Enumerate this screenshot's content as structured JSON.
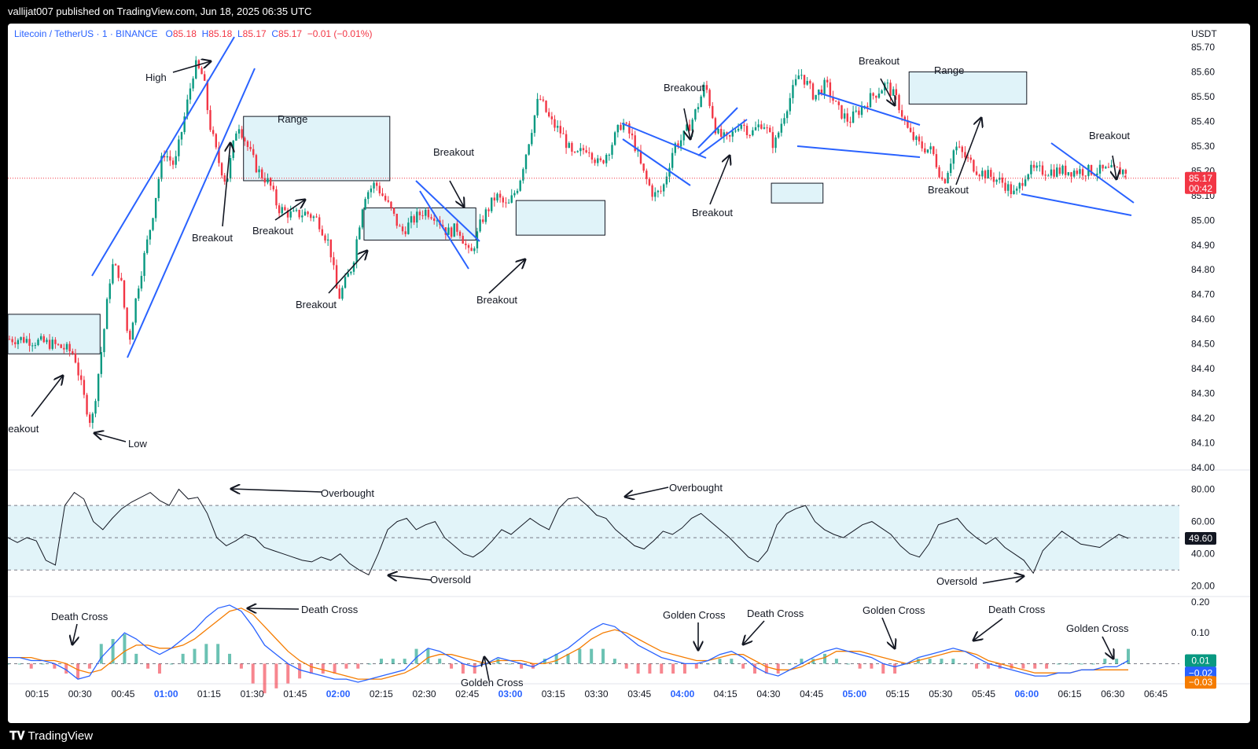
{
  "header": {
    "published": "vallijat007 published on TradingView.com, Jun 18, 2025 06:35 UTC"
  },
  "footer": {
    "brand": "TradingView"
  },
  "legend": {
    "symbol": "Litecoin / TetherUS · 1 · BINANCE",
    "o_label": "O",
    "o": "85.18",
    "h_label": "H",
    "h": "85.18",
    "l_label": "L",
    "l": "85.17",
    "c_label": "C",
    "c": "85.17",
    "change": "−0.01 (−0.01%)"
  },
  "colors": {
    "up": "#089981",
    "down": "#f23645",
    "line": "#2962ff",
    "box": "#d8f0f7",
    "orange": "#f57c00"
  },
  "chart_data": [
    {
      "type": "candlestick",
      "currency": "USDT",
      "y_ticks": [
        "85.70",
        "85.60",
        "85.50",
        "85.40",
        "85.30",
        "85.20",
        "85.10",
        "85.00",
        "84.90",
        "84.80",
        "84.70",
        "84.60",
        "84.50",
        "84.40",
        "84.30",
        "84.20",
        "84.10",
        "84.00"
      ],
      "ylim": [
        84.0,
        85.7
      ],
      "x_ticks": [
        "00:15",
        "00:30",
        "00:45",
        "01:00",
        "01:15",
        "01:30",
        "01:45",
        "02:00",
        "02:15",
        "02:30",
        "02:45",
        "03:00",
        "03:15",
        "03:30",
        "03:45",
        "04:00",
        "04:15",
        "04:30",
        "04:45",
        "05:00",
        "05:15",
        "05:30",
        "05:45",
        "06:00",
        "06:15",
        "06:30",
        "06:45"
      ],
      "bold_ticks": [
        "01:00",
        "02:00",
        "03:00",
        "04:00",
        "05:00",
        "06:00"
      ],
      "last_price": "85.17",
      "countdown": "00:42",
      "price_path": [
        [
          "00:10",
          84.52
        ],
        [
          "00:20",
          84.5
        ],
        [
          "00:25",
          84.48
        ],
        [
          "00:28",
          84.46
        ],
        [
          "00:31",
          84.3
        ],
        [
          "00:34",
          84.17
        ],
        [
          "00:38",
          84.52
        ],
        [
          "00:41",
          84.82
        ],
        [
          "00:44",
          84.78
        ],
        [
          "00:47",
          84.5
        ],
        [
          "00:50",
          84.72
        ],
        [
          "00:55",
          85.0
        ],
        [
          "00:59",
          85.28
        ],
        [
          "01:03",
          85.22
        ],
        [
          "01:07",
          85.45
        ],
        [
          "01:10",
          85.63
        ],
        [
          "01:13",
          85.58
        ],
        [
          "01:15",
          85.4
        ],
        [
          "01:18",
          85.25
        ],
        [
          "01:21",
          85.15
        ],
        [
          "01:25",
          85.4
        ],
        [
          "01:29",
          85.28
        ],
        [
          "01:32",
          85.2
        ],
        [
          "01:36",
          85.15
        ],
        [
          "01:39",
          85.05
        ],
        [
          "01:44",
          85.02
        ],
        [
          "01:49",
          85.03
        ],
        [
          "01:53",
          85.0
        ],
        [
          "01:57",
          84.9
        ],
        [
          "02:00",
          84.68
        ],
        [
          "02:05",
          84.82
        ],
        [
          "02:09",
          85.1
        ],
        [
          "02:13",
          85.15
        ],
        [
          "02:18",
          85.05
        ],
        [
          "02:22",
          84.95
        ],
        [
          "02:26",
          85.0
        ],
        [
          "02:30",
          85.04
        ],
        [
          "02:34",
          85.02
        ],
        [
          "02:38",
          84.95
        ],
        [
          "02:42",
          84.97
        ],
        [
          "02:46",
          84.85
        ],
        [
          "02:50",
          85.0
        ],
        [
          "02:55",
          85.1
        ],
        [
          "02:59",
          85.05
        ],
        [
          "03:03",
          85.15
        ],
        [
          "03:06",
          85.3
        ],
        [
          "03:10",
          85.5
        ],
        [
          "03:14",
          85.4
        ],
        [
          "03:18",
          85.35
        ],
        [
          "03:22",
          85.25
        ],
        [
          "03:27",
          85.3
        ],
        [
          "03:31",
          85.22
        ],
        [
          "03:35",
          85.3
        ],
        [
          "03:39",
          85.4
        ],
        [
          "03:43",
          85.32
        ],
        [
          "03:46",
          85.2
        ],
        [
          "03:50",
          85.1
        ],
        [
          "03:53",
          85.12
        ],
        [
          "03:57",
          85.3
        ],
        [
          "04:00",
          85.33
        ],
        [
          "04:04",
          85.42
        ],
        [
          "04:08",
          85.55
        ],
        [
          "04:12",
          85.35
        ],
        [
          "04:16",
          85.32
        ],
        [
          "04:20",
          85.4
        ],
        [
          "04:24",
          85.35
        ],
        [
          "04:28",
          85.4
        ],
        [
          "04:32",
          85.3
        ],
        [
          "04:36",
          85.45
        ],
        [
          "04:41",
          85.6
        ],
        [
          "04:46",
          85.5
        ],
        [
          "04:50",
          85.55
        ],
        [
          "04:54",
          85.45
        ],
        [
          "04:58",
          85.4
        ],
        [
          "05:02",
          85.45
        ],
        [
          "05:06",
          85.5
        ],
        [
          "05:11",
          85.55
        ],
        [
          "05:15",
          85.48
        ],
        [
          "05:19",
          85.35
        ],
        [
          "05:23",
          85.3
        ],
        [
          "05:27",
          85.28
        ],
        [
          "05:31",
          85.15
        ],
        [
          "05:35",
          85.3
        ],
        [
          "05:39",
          85.25
        ],
        [
          "05:43",
          85.2
        ],
        [
          "05:47",
          85.18
        ],
        [
          "05:52",
          85.15
        ],
        [
          "05:56",
          85.1
        ],
        [
          "06:00",
          85.2
        ]
      ]
    },
    {
      "type": "line",
      "indicator": "RSI",
      "y_ticks": [
        "80.00",
        "60.00",
        "40.00",
        "20.00"
      ],
      "ylim": [
        15,
        90
      ],
      "levels": [
        70,
        50,
        30
      ],
      "last_value": "49.60",
      "values": [
        50,
        47,
        50,
        48,
        36,
        33,
        70,
        78,
        74,
        60,
        55,
        62,
        68,
        72,
        75,
        78,
        73,
        70,
        80,
        74,
        75,
        65,
        50,
        45,
        48,
        52,
        50,
        44,
        42,
        40,
        38,
        36,
        35,
        38,
        36,
        40,
        34,
        30,
        27,
        40,
        55,
        60,
        62,
        55,
        58,
        60,
        50,
        45,
        40,
        38,
        42,
        48,
        55,
        52,
        57,
        62,
        58,
        55,
        68,
        74,
        75,
        70,
        64,
        62,
        55,
        50,
        45,
        43,
        48,
        54,
        52,
        56,
        62,
        65,
        60,
        55,
        50,
        44,
        38,
        35,
        42,
        58,
        65,
        68,
        70,
        60,
        55,
        52,
        50,
        54,
        58,
        60,
        56,
        52,
        45,
        40,
        38,
        46,
        58,
        60,
        62,
        55,
        50,
        46,
        50,
        44,
        40,
        36,
        28,
        42,
        48,
        54,
        50,
        46,
        45,
        44,
        48,
        52,
        49.6
      ]
    },
    {
      "type": "line",
      "indicator": "MACD",
      "y_ticks": [
        "0.20",
        "0.10"
      ],
      "ylim": [
        -0.06,
        0.21
      ],
      "macd_last": "0.01",
      "signal_last": "−0.02",
      "hist_last": "−0.03",
      "macd": [
        0.02,
        0.02,
        0.01,
        0.01,
        0.0,
        -0.02,
        -0.05,
        -0.04,
        0.02,
        0.06,
        0.1,
        0.08,
        0.05,
        0.03,
        0.05,
        0.08,
        0.11,
        0.15,
        0.18,
        0.19,
        0.17,
        0.12,
        0.06,
        0.03,
        0.0,
        -0.02,
        -0.03,
        -0.04,
        -0.05,
        -0.05,
        -0.06,
        -0.05,
        -0.04,
        -0.03,
        -0.02,
        0.02,
        0.05,
        0.04,
        0.02,
        0.0,
        -0.01,
        0.0,
        0.02,
        0.01,
        0.0,
        -0.01,
        0.01,
        0.03,
        0.05,
        0.08,
        0.11,
        0.13,
        0.12,
        0.09,
        0.06,
        0.04,
        0.02,
        0.01,
        0.0,
        0.0,
        0.01,
        0.03,
        0.04,
        0.02,
        -0.01,
        -0.03,
        -0.04,
        -0.02,
        0.0,
        0.02,
        0.04,
        0.05,
        0.04,
        0.03,
        0.02,
        0.0,
        -0.01,
        0.0,
        0.02,
        0.03,
        0.04,
        0.05,
        0.04,
        0.02,
        0.0,
        -0.01,
        -0.02,
        -0.03,
        -0.04,
        -0.04,
        -0.03,
        -0.03,
        -0.02,
        -0.02,
        -0.01,
        -0.01,
        0.01
      ],
      "signal": [
        0.02,
        0.02,
        0.02,
        0.01,
        0.01,
        0.0,
        -0.02,
        -0.03,
        -0.02,
        0.01,
        0.04,
        0.06,
        0.06,
        0.05,
        0.05,
        0.06,
        0.08,
        0.11,
        0.14,
        0.17,
        0.18,
        0.16,
        0.12,
        0.08,
        0.04,
        0.01,
        -0.01,
        -0.02,
        -0.03,
        -0.04,
        -0.05,
        -0.05,
        -0.05,
        -0.04,
        -0.03,
        -0.01,
        0.02,
        0.03,
        0.03,
        0.02,
        0.01,
        0.0,
        0.01,
        0.01,
        0.01,
        0.0,
        0.0,
        0.01,
        0.03,
        0.05,
        0.08,
        0.1,
        0.11,
        0.1,
        0.08,
        0.06,
        0.04,
        0.03,
        0.02,
        0.01,
        0.01,
        0.02,
        0.03,
        0.03,
        0.01,
        -0.01,
        -0.02,
        -0.02,
        -0.01,
        0.01,
        0.02,
        0.04,
        0.04,
        0.04,
        0.03,
        0.02,
        0.01,
        0.0,
        0.01,
        0.02,
        0.03,
        0.04,
        0.04,
        0.03,
        0.01,
        0.0,
        -0.01,
        -0.02,
        -0.03,
        -0.03,
        -0.03,
        -0.03,
        -0.02,
        -0.02,
        -0.02,
        -0.02,
        -0.02
      ]
    }
  ],
  "annotations": {
    "breakout": "Breakout",
    "reakout": "reakout",
    "high": "High",
    "low": "Low",
    "range": "Range",
    "overbought": "Overbought",
    "oversold": "Oversold",
    "death_cross": "Death Cross",
    "golden_cross": "Golden Cross"
  }
}
